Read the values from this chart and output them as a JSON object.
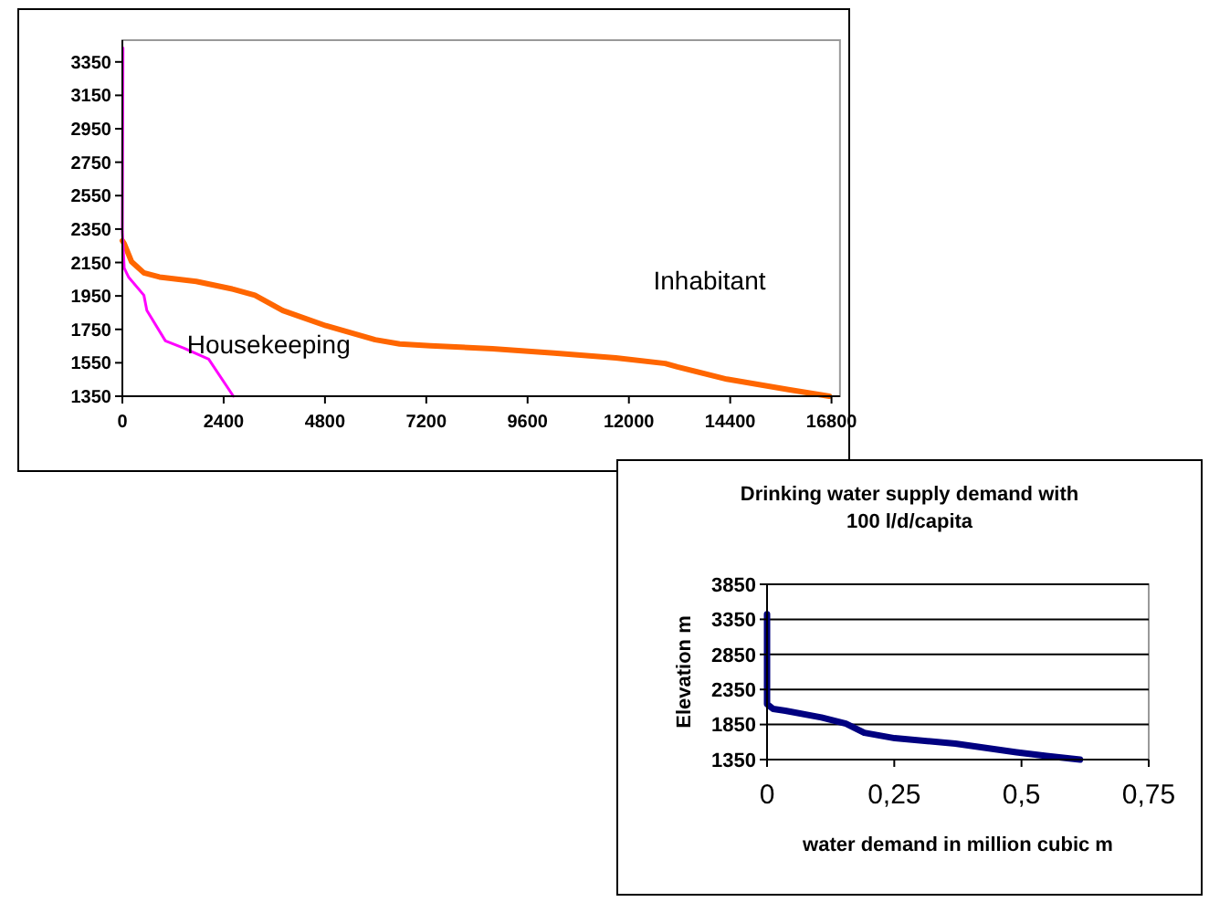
{
  "chart_data": [
    {
      "type": "line",
      "xlim": [
        0,
        17000
      ],
      "ylim": [
        1350,
        3480
      ],
      "xticks": [
        0,
        2400,
        4800,
        7200,
        9600,
        12000,
        14400,
        16800
      ],
      "yticks": [
        1350,
        1550,
        1750,
        1950,
        2150,
        2350,
        2550,
        2750,
        2950,
        3150,
        3350
      ],
      "grid": false,
      "legend": false,
      "series": [
        {
          "name": "Inhabitant",
          "color": "#ff6600",
          "x": [
            0,
            44,
            220,
            510,
            880,
            1750,
            2630,
            3140,
            3800,
            4820,
            5990,
            6570,
            7300,
            8770,
            10230,
            11690,
            12860,
            13150,
            14320,
            15780,
            16750
          ],
          "values": [
            2280,
            2263,
            2154,
            2088,
            2063,
            2037,
            1990,
            1954,
            1863,
            1772,
            1688,
            1663,
            1652,
            1634,
            1608,
            1579,
            1546,
            1525,
            1452,
            1390,
            1350
          ]
        },
        {
          "name": "Housekeeping",
          "color": "#ff00ff",
          "x": [
            15,
            0,
            44,
            146,
            510,
            580,
            1020,
            1460,
            2045,
            2630
          ],
          "values": [
            3434,
            2335,
            2117,
            2063,
            1954,
            1863,
            1681,
            1637,
            1572,
            1350
          ]
        }
      ]
    },
    {
      "type": "line",
      "title": "Drinking water supply demand with 100 l/d/capita",
      "xlabel": "water demand in million cubic m",
      "ylabel": "Elevation m",
      "xlim": [
        0,
        0.75
      ],
      "ylim": [
        1350,
        3850
      ],
      "xticks": [
        0,
        {
          "value": 0.25,
          "label": "0,25"
        },
        {
          "value": 0.5,
          "label": "0,5"
        },
        {
          "value": 0.75,
          "label": "0,75"
        }
      ],
      "yticks": [
        1350,
        1850,
        2350,
        2850,
        3350,
        3850
      ],
      "grid": "y",
      "legend": false,
      "series": [
        {
          "color": "#000080",
          "x": [
            0,
            0,
            0.012,
            0.036,
            0.107,
            0.155,
            0.191,
            0.251,
            0.37,
            0.49,
            0.549,
            0.615
          ],
          "values": [
            3424,
            2142,
            2072,
            2046,
            1951,
            1864,
            1733,
            1655,
            1577,
            1455,
            1402,
            1350
          ]
        }
      ]
    }
  ]
}
